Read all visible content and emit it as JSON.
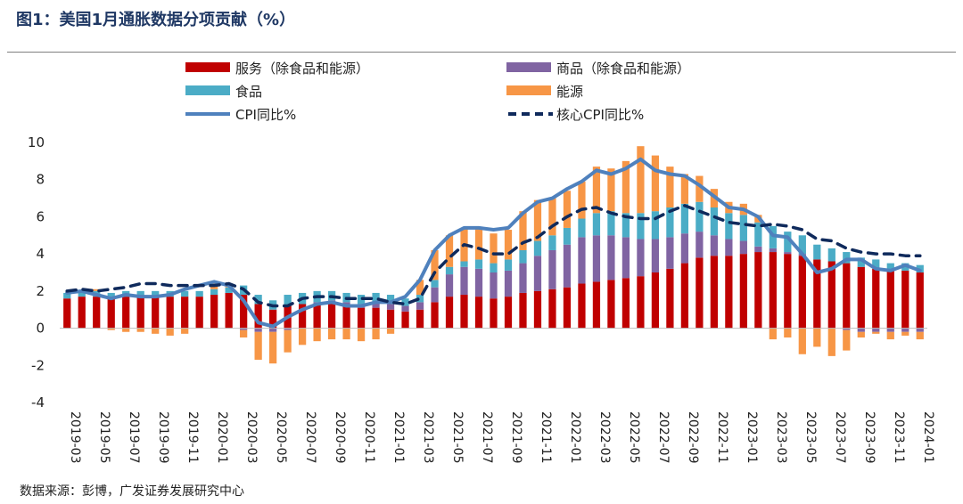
{
  "title": "图1：美国1月通胀数据分项贡献（%）",
  "source": "数据来源：彭博，广发证券发展研究中心",
  "colors": {
    "services": "#c00000",
    "goods": "#8064a2",
    "food": "#4bacc6",
    "energy": "#f79646",
    "cpi": "#4f81bd",
    "core": "#0f2a5c"
  },
  "chart_data": {
    "type": "bar",
    "stacked": true,
    "ylim": [
      -4,
      10
    ],
    "yticks": [
      -4,
      -2,
      0,
      2,
      4,
      6,
      8,
      10
    ],
    "x_tick_labels": [
      "2019-03",
      "2019-05",
      "2019-07",
      "2019-09",
      "2019-11",
      "2020-01",
      "2020-03",
      "2020-05",
      "2020-07",
      "2020-09",
      "2020-11",
      "2021-01",
      "2021-03",
      "2021-05",
      "2021-07",
      "2021-09",
      "2021-11",
      "2022-01",
      "2022-03",
      "2022-05",
      "2022-07",
      "2022-09",
      "2022-11",
      "2023-01",
      "2023-03",
      "2023-05",
      "2023-07",
      "2023-09",
      "2023-11",
      "2024-01"
    ],
    "legend": [
      "服务（除食品和能源）",
      "商品（除食品和能源）",
      "食品",
      "能源",
      "CPI同比%",
      "核心CPI同比%"
    ],
    "legend_position": "top",
    "x": [
      "2019-03",
      "2019-04",
      "2019-05",
      "2019-06",
      "2019-07",
      "2019-08",
      "2019-09",
      "2019-10",
      "2019-11",
      "2019-12",
      "2020-01",
      "2020-02",
      "2020-03",
      "2020-04",
      "2020-05",
      "2020-06",
      "2020-07",
      "2020-08",
      "2020-09",
      "2020-10",
      "2020-11",
      "2020-12",
      "2021-01",
      "2021-02",
      "2021-03",
      "2021-04",
      "2021-05",
      "2021-06",
      "2021-07",
      "2021-08",
      "2021-09",
      "2021-10",
      "2021-11",
      "2021-12",
      "2022-01",
      "2022-02",
      "2022-03",
      "2022-04",
      "2022-05",
      "2022-06",
      "2022-07",
      "2022-08",
      "2022-09",
      "2022-10",
      "2022-11",
      "2022-12",
      "2023-01",
      "2023-02",
      "2023-03",
      "2023-04",
      "2023-05",
      "2023-06",
      "2023-07",
      "2023-08",
      "2023-09",
      "2023-10",
      "2023-11",
      "2023-12",
      "2024-01"
    ],
    "series": [
      {
        "name": "服务（除食品和能源）",
        "values": [
          1.6,
          1.7,
          1.7,
          1.6,
          1.7,
          1.7,
          1.7,
          1.7,
          1.7,
          1.7,
          1.8,
          1.9,
          1.8,
          1.3,
          1.0,
          1.2,
          1.3,
          1.3,
          1.3,
          1.2,
          1.1,
          1.1,
          1.0,
          0.9,
          1.0,
          1.4,
          1.7,
          1.8,
          1.7,
          1.6,
          1.7,
          1.9,
          2.0,
          2.1,
          2.2,
          2.4,
          2.5,
          2.6,
          2.7,
          2.8,
          3.0,
          3.2,
          3.5,
          3.8,
          3.9,
          3.9,
          4.0,
          4.1,
          4.1,
          4.0,
          3.9,
          3.7,
          3.6,
          3.5,
          3.3,
          3.2,
          3.1,
          3.1,
          3.0
        ]
      },
      {
        "name": "商品（除食品和能源）",
        "values": [
          0.0,
          0.0,
          0.0,
          0.0,
          0.0,
          0.0,
          0.0,
          0.0,
          0.0,
          0.0,
          0.0,
          0.0,
          -0.1,
          -0.2,
          -0.2,
          -0.1,
          0.0,
          0.1,
          0.2,
          0.2,
          0.2,
          0.3,
          0.3,
          0.3,
          0.4,
          0.8,
          1.2,
          1.5,
          1.5,
          1.4,
          1.4,
          1.6,
          1.9,
          2.1,
          2.3,
          2.5,
          2.5,
          2.4,
          2.2,
          2.0,
          1.8,
          1.7,
          1.6,
          1.4,
          1.1,
          0.9,
          0.7,
          0.3,
          0.2,
          0.1,
          0.1,
          0.0,
          0.0,
          -0.1,
          -0.2,
          -0.2,
          -0.2,
          -0.2,
          -0.2
        ]
      },
      {
        "name": "食品",
        "values": [
          0.3,
          0.3,
          0.3,
          0.3,
          0.3,
          0.3,
          0.3,
          0.3,
          0.3,
          0.3,
          0.3,
          0.3,
          0.5,
          0.5,
          0.5,
          0.6,
          0.6,
          0.6,
          0.5,
          0.5,
          0.5,
          0.5,
          0.5,
          0.4,
          0.4,
          0.4,
          0.4,
          0.3,
          0.5,
          0.5,
          0.6,
          0.7,
          0.8,
          0.8,
          0.9,
          1.0,
          1.2,
          1.3,
          1.3,
          1.4,
          1.5,
          1.6,
          1.6,
          1.6,
          1.5,
          1.4,
          1.4,
          1.3,
          1.2,
          1.1,
          1.0,
          0.8,
          0.7,
          0.6,
          0.5,
          0.5,
          0.4,
          0.4,
          0.4
        ]
      },
      {
        "name": "能源",
        "values": [
          0.0,
          0.0,
          0.1,
          -0.1,
          -0.2,
          -0.2,
          -0.3,
          -0.4,
          -0.3,
          0.0,
          0.3,
          0.1,
          -0.4,
          -1.5,
          -1.7,
          -1.2,
          -0.9,
          -0.7,
          -0.6,
          -0.6,
          -0.7,
          -0.6,
          -0.3,
          0.0,
          0.8,
          1.6,
          1.7,
          1.8,
          1.7,
          1.6,
          1.6,
          2.1,
          2.2,
          2.0,
          2.0,
          2.0,
          2.5,
          2.3,
          2.8,
          3.6,
          3.0,
          2.2,
          1.6,
          1.4,
          1.0,
          0.6,
          0.6,
          0.4,
          -0.6,
          -0.5,
          -1.4,
          -1.0,
          -1.5,
          -1.1,
          -0.3,
          -0.1,
          -0.4,
          -0.2,
          -0.4
        ]
      },
      {
        "name": "CPI同比%",
        "type": "line",
        "values": [
          1.9,
          2.0,
          1.8,
          1.6,
          1.8,
          1.7,
          1.7,
          1.8,
          2.1,
          2.3,
          2.5,
          2.3,
          1.5,
          0.3,
          0.1,
          0.6,
          1.0,
          1.3,
          1.4,
          1.2,
          1.2,
          1.4,
          1.4,
          1.7,
          2.6,
          4.2,
          5.0,
          5.4,
          5.4,
          5.3,
          5.4,
          6.2,
          6.8,
          7.0,
          7.5,
          7.9,
          8.5,
          8.3,
          8.6,
          9.1,
          8.5,
          8.3,
          8.2,
          7.7,
          7.1,
          6.5,
          6.4,
          6.0,
          5.0,
          4.9,
          4.0,
          3.0,
          3.2,
          3.7,
          3.7,
          3.2,
          3.1,
          3.4,
          3.1
        ]
      },
      {
        "name": "核心CPI同比%",
        "type": "line",
        "dashed": true,
        "values": [
          2.0,
          2.1,
          2.0,
          2.1,
          2.2,
          2.4,
          2.4,
          2.3,
          2.3,
          2.3,
          2.3,
          2.4,
          2.1,
          1.4,
          1.2,
          1.2,
          1.6,
          1.7,
          1.7,
          1.6,
          1.6,
          1.6,
          1.4,
          1.3,
          1.6,
          3.0,
          3.8,
          4.5,
          4.3,
          4.0,
          4.0,
          4.6,
          4.9,
          5.5,
          6.0,
          6.4,
          6.5,
          6.2,
          6.0,
          5.9,
          5.9,
          6.3,
          6.6,
          6.3,
          6.0,
          5.7,
          5.6,
          5.5,
          5.6,
          5.5,
          5.3,
          4.8,
          4.7,
          4.3,
          4.1,
          4.0,
          4.0,
          3.9,
          3.9
        ]
      }
    ]
  }
}
